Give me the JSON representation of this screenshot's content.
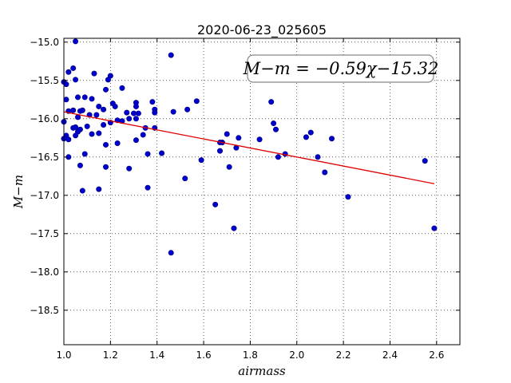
{
  "chart_data": {
    "type": "scatter",
    "title": "2020-06-23_025605",
    "xlabel": "airmass",
    "ylabel": "M−m",
    "xlim": [
      1.0,
      2.7
    ],
    "ylim": [
      -18.95,
      -14.95
    ],
    "y_inverted": true,
    "x_ticks": [
      "1.0",
      "1.2",
      "1.4",
      "1.6",
      "1.8",
      "2.0",
      "2.2",
      "2.4",
      "2.6"
    ],
    "y_ticks": [
      "−15.0",
      "−15.5",
      "−16.0",
      "−16.5",
      "−17.0",
      "−17.5",
      "−18.0",
      "−18.5"
    ],
    "grid": true,
    "point_color": "#0000cc",
    "fit_color": "#e00000",
    "annotation": "M−m = −0.59χ−15.32",
    "fit": {
      "slope": -0.59,
      "intercept": -15.32,
      "x_range": [
        1.0,
        2.59
      ]
    },
    "points": [
      [
        1.05,
        -14.99
      ],
      [
        1.46,
        -15.17
      ],
      [
        1.04,
        -15.34
      ],
      [
        1.02,
        -15.39
      ],
      [
        1.05,
        -15.49
      ],
      [
        1.0,
        -15.52
      ],
      [
        1.01,
        -15.55
      ],
      [
        1.13,
        -15.41
      ],
      [
        1.2,
        -15.44
      ],
      [
        1.19,
        -15.49
      ],
      [
        1.25,
        -15.6
      ],
      [
        1.18,
        -15.62
      ],
      [
        1.06,
        -15.72
      ],
      [
        1.09,
        -15.72
      ],
      [
        1.12,
        -15.74
      ],
      [
        1.01,
        -15.75
      ],
      [
        1.21,
        -15.8
      ],
      [
        1.31,
        -15.79
      ],
      [
        1.38,
        -15.78
      ],
      [
        1.57,
        -15.77
      ],
      [
        1.89,
        -15.78
      ],
      [
        1.15,
        -15.84
      ],
      [
        1.22,
        -15.84
      ],
      [
        1.31,
        -15.84
      ],
      [
        1.04,
        -15.89
      ],
      [
        1.07,
        -15.9
      ],
      [
        1.08,
        -15.89
      ],
      [
        1.17,
        -15.88
      ],
      [
        1.39,
        -15.88
      ],
      [
        1.53,
        -15.88
      ],
      [
        1.02,
        -15.9
      ],
      [
        1.27,
        -15.92
      ],
      [
        1.3,
        -15.93
      ],
      [
        1.32,
        -15.93
      ],
      [
        1.47,
        -15.91
      ],
      [
        1.39,
        -15.92
      ],
      [
        1.11,
        -15.95
      ],
      [
        1.14,
        -15.95
      ],
      [
        1.06,
        -15.98
      ],
      [
        1.28,
        -16.0
      ],
      [
        1.31,
        -16.0
      ],
      [
        1.23,
        -16.02
      ],
      [
        1.25,
        -16.03
      ],
      [
        1.0,
        -16.04
      ],
      [
        1.2,
        -16.05
      ],
      [
        1.17,
        -16.08
      ],
      [
        1.9,
        -16.06
      ],
      [
        1.1,
        -16.1
      ],
      [
        1.04,
        -16.12
      ],
      [
        1.05,
        -16.11
      ],
      [
        1.07,
        -16.14
      ],
      [
        1.35,
        -16.12
      ],
      [
        1.39,
        -16.12
      ],
      [
        1.06,
        -16.17
      ],
      [
        1.91,
        -16.14
      ],
      [
        1.15,
        -16.19
      ],
      [
        1.12,
        -16.2
      ],
      [
        1.34,
        -16.21
      ],
      [
        1.05,
        -16.22
      ],
      [
        1.01,
        -16.22
      ],
      [
        1.7,
        -16.2
      ],
      [
        2.06,
        -16.18
      ],
      [
        1.0,
        -16.26
      ],
      [
        1.02,
        -16.27
      ],
      [
        1.31,
        -16.28
      ],
      [
        1.75,
        -16.25
      ],
      [
        2.04,
        -16.24
      ],
      [
        1.84,
        -16.27
      ],
      [
        2.15,
        -16.26
      ],
      [
        1.23,
        -16.32
      ],
      [
        1.18,
        -16.34
      ],
      [
        1.68,
        -16.31
      ],
      [
        1.67,
        -16.31
      ],
      [
        1.74,
        -16.38
      ],
      [
        1.67,
        -16.42
      ],
      [
        1.09,
        -16.46
      ],
      [
        1.36,
        -16.46
      ],
      [
        1.42,
        -16.45
      ],
      [
        1.95,
        -16.46
      ],
      [
        1.02,
        -16.5
      ],
      [
        1.92,
        -16.5
      ],
      [
        2.09,
        -16.5
      ],
      [
        1.59,
        -16.54
      ],
      [
        2.55,
        -16.55
      ],
      [
        1.07,
        -16.61
      ],
      [
        1.18,
        -16.63
      ],
      [
        1.28,
        -16.65
      ],
      [
        1.71,
        -16.63
      ],
      [
        2.12,
        -16.7
      ],
      [
        1.52,
        -16.78
      ],
      [
        1.15,
        -16.92
      ],
      [
        1.36,
        -16.9
      ],
      [
        1.08,
        -16.94
      ],
      [
        2.22,
        -17.02
      ],
      [
        1.65,
        -17.12
      ],
      [
        1.73,
        -17.43
      ],
      [
        2.59,
        -17.43
      ],
      [
        1.46,
        -17.75
      ]
    ]
  }
}
